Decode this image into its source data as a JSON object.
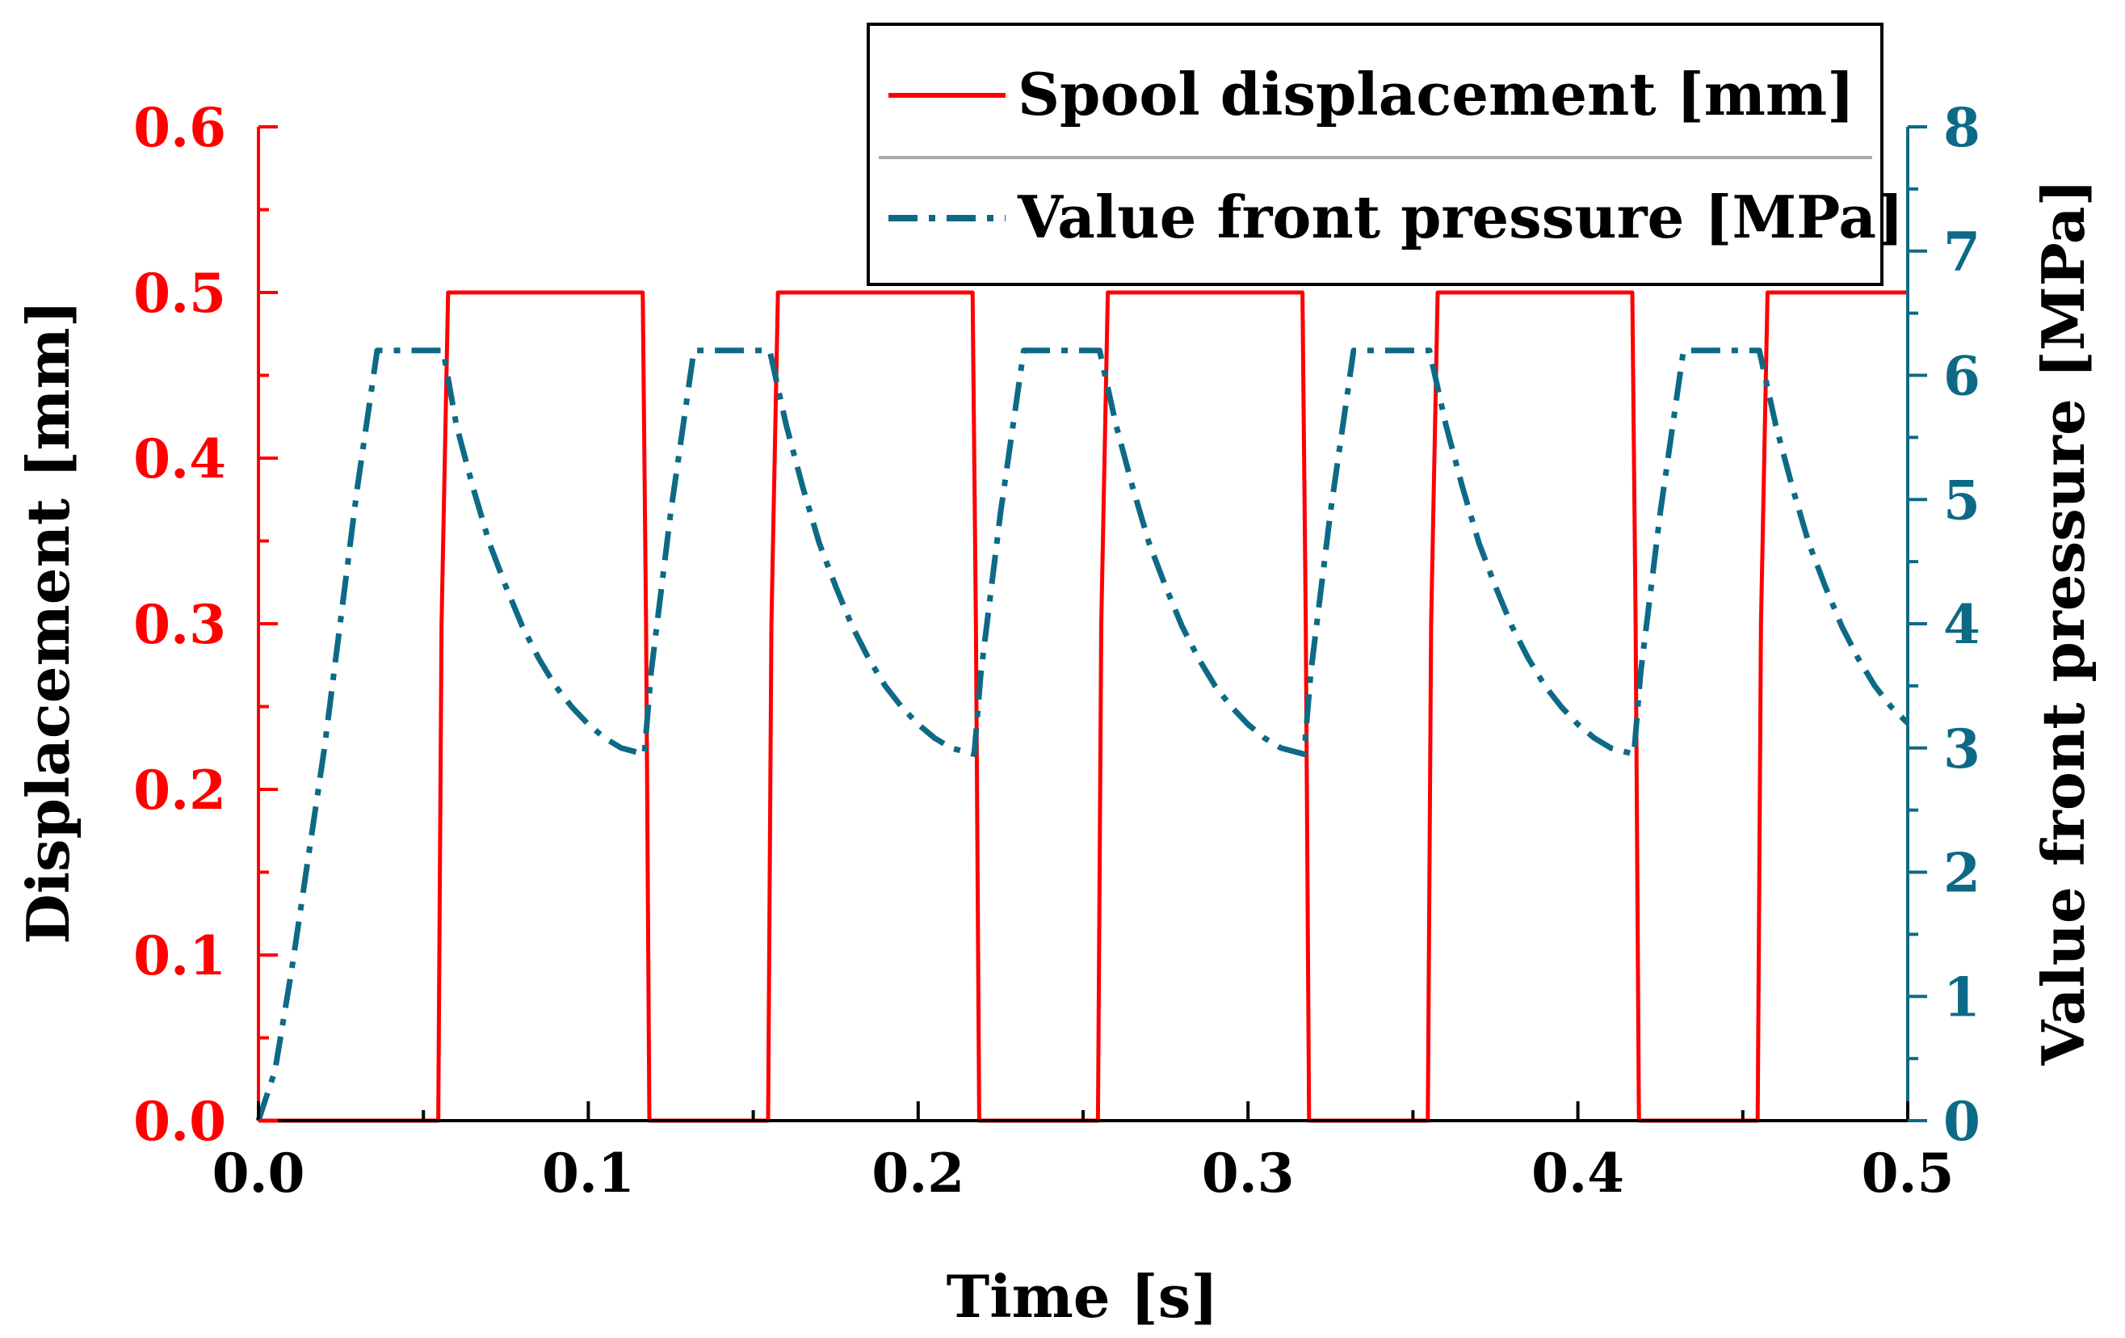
{
  "chart_data": {
    "type": "line",
    "title": "",
    "colors": {
      "displacement": "#ff0000",
      "pressure": "#0d6a86",
      "axis_black": "#000000"
    },
    "x_axis": {
      "label": "Time [s]",
      "range": [
        0.0,
        0.5
      ],
      "ticks": [
        "0.0",
        "0.1",
        "0.2",
        "0.3",
        "0.4",
        "0.5"
      ],
      "tick_values": [
        0.0,
        0.1,
        0.2,
        0.3,
        0.4,
        0.5
      ]
    },
    "y_left": {
      "label": "Displacement [mm]",
      "range": [
        0.0,
        0.6
      ],
      "ticks": [
        "0.0",
        "0.1",
        "0.2",
        "0.3",
        "0.4",
        "0.5",
        "0.6"
      ],
      "tick_values": [
        0.0,
        0.1,
        0.2,
        0.3,
        0.4,
        0.5,
        0.6
      ]
    },
    "y_right": {
      "label": "Value front pressure  [MPa]",
      "range": [
        0,
        8
      ],
      "ticks": [
        "0",
        "1",
        "2",
        "3",
        "4",
        "5",
        "6",
        "7",
        "8"
      ],
      "tick_values": [
        0,
        1,
        2,
        3,
        4,
        5,
        6,
        7,
        8
      ]
    },
    "legend": {
      "position": "top-right",
      "entries": [
        "Spool displacement  [mm]",
        "Value front pressure  [MPa]"
      ]
    },
    "series": [
      {
        "name": "Spool displacement  [mm]",
        "axis": "left",
        "style": "solid",
        "x": [
          0.0,
          0.0545,
          0.0555,
          0.0575,
          0.1165,
          0.1175,
          0.1185,
          0.1545,
          0.1555,
          0.1575,
          0.2165,
          0.2175,
          0.2185,
          0.2545,
          0.2555,
          0.2575,
          0.3165,
          0.3175,
          0.3185,
          0.3545,
          0.3555,
          0.3575,
          0.4165,
          0.4175,
          0.4185,
          0.4545,
          0.4555,
          0.4575,
          0.5
        ],
        "values": [
          0.0,
          0.0,
          0.3,
          0.5,
          0.5,
          0.3,
          0.0,
          0.0,
          0.3,
          0.5,
          0.5,
          0.3,
          0.0,
          0.0,
          0.3,
          0.5,
          0.5,
          0.3,
          0.0,
          0.0,
          0.3,
          0.5,
          0.5,
          0.3,
          0.0,
          0.0,
          0.3,
          0.5,
          0.5
        ]
      },
      {
        "name": "Value front pressure  [MPa]",
        "axis": "right",
        "style": "dash-dot",
        "x": [
          0.0,
          0.005,
          0.01,
          0.02,
          0.03,
          0.036,
          0.056,
          0.06,
          0.065,
          0.07,
          0.075,
          0.08,
          0.085,
          0.09,
          0.095,
          0.1,
          0.105,
          0.11,
          0.117,
          0.119,
          0.125,
          0.132,
          0.155,
          0.16,
          0.165,
          0.17,
          0.175,
          0.18,
          0.185,
          0.19,
          0.195,
          0.2,
          0.205,
          0.21,
          0.217,
          0.219,
          0.225,
          0.232,
          0.255,
          0.26,
          0.265,
          0.27,
          0.275,
          0.28,
          0.285,
          0.29,
          0.295,
          0.3,
          0.305,
          0.31,
          0.317,
          0.319,
          0.325,
          0.332,
          0.355,
          0.36,
          0.365,
          0.37,
          0.375,
          0.38,
          0.385,
          0.39,
          0.395,
          0.4,
          0.405,
          0.41,
          0.417,
          0.419,
          0.425,
          0.432,
          0.455,
          0.46,
          0.465,
          0.47,
          0.475,
          0.48,
          0.485,
          0.49,
          0.495,
          0.5
        ],
        "values": [
          0.0,
          0.4,
          1.2,
          3.0,
          5.1,
          6.2,
          6.2,
          5.6,
          5.1,
          4.65,
          4.3,
          3.98,
          3.72,
          3.5,
          3.33,
          3.19,
          3.08,
          3.0,
          2.95,
          3.6,
          4.9,
          6.2,
          6.2,
          5.6,
          5.1,
          4.65,
          4.3,
          3.98,
          3.72,
          3.5,
          3.33,
          3.19,
          3.08,
          3.0,
          2.95,
          3.6,
          4.9,
          6.2,
          6.2,
          5.6,
          5.1,
          4.65,
          4.3,
          3.98,
          3.72,
          3.5,
          3.33,
          3.19,
          3.08,
          3.0,
          2.95,
          3.6,
          4.9,
          6.2,
          6.2,
          5.6,
          5.1,
          4.65,
          4.3,
          3.98,
          3.72,
          3.5,
          3.33,
          3.19,
          3.08,
          3.0,
          2.95,
          3.6,
          4.9,
          6.2,
          6.2,
          5.6,
          5.1,
          4.65,
          4.3,
          3.98,
          3.72,
          3.5,
          3.33,
          3.2
        ]
      }
    ]
  }
}
